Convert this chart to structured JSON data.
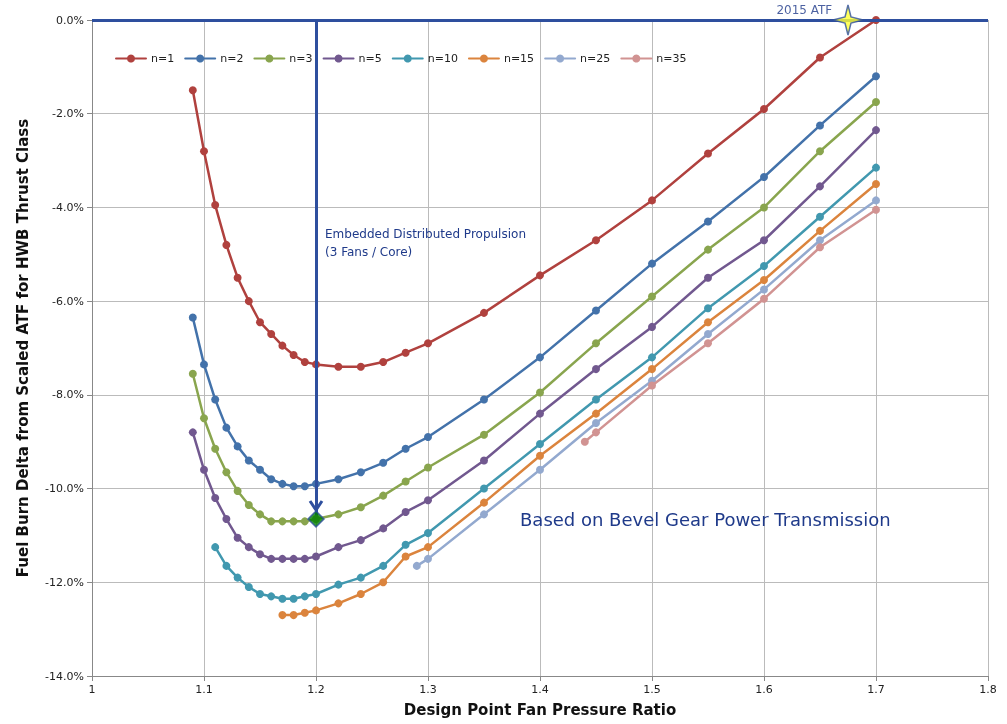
{
  "chart_data": {
    "type": "line",
    "xlabel": "Design Point Fan Pressure Ratio",
    "ylabel": "Fuel Burn Delta from Scaled ATF for HWB Thrust Class",
    "x": [
      1.09,
      1.1,
      1.11,
      1.12,
      1.13,
      1.14,
      1.15,
      1.16,
      1.17,
      1.18,
      1.19,
      1.2,
      1.22,
      1.24,
      1.26,
      1.28,
      1.3,
      1.35,
      1.4,
      1.45,
      1.5,
      1.55,
      1.6,
      1.65,
      1.7
    ],
    "series": [
      {
        "name": "n=1",
        "color": "#b0413e",
        "values": [
          -1.5,
          -2.8,
          -3.95,
          -4.8,
          -5.5,
          -6.0,
          -6.45,
          -6.7,
          -6.95,
          -7.15,
          -7.3,
          -7.35,
          -7.4,
          -7.4,
          -7.3,
          -7.1,
          -6.9,
          -6.25,
          -5.45,
          -4.7,
          -3.85,
          -2.85,
          -1.9,
          -0.8,
          0.0
        ]
      },
      {
        "name": "n=2",
        "color": "#4372aa",
        "values": [
          -6.35,
          -7.35,
          -8.1,
          -8.7,
          -9.1,
          -9.4,
          -9.6,
          -9.8,
          -9.9,
          -9.95,
          -9.95,
          -9.9,
          -9.8,
          -9.65,
          -9.45,
          -9.15,
          -8.9,
          -8.1,
          -7.2,
          -6.2,
          -5.2,
          -4.3,
          -3.35,
          -2.25,
          -1.2
        ]
      },
      {
        "name": "n=3",
        "color": "#89a54e",
        "values": [
          -7.55,
          -8.5,
          -9.15,
          -9.65,
          -10.05,
          -10.35,
          -10.55,
          -10.7,
          -10.7,
          -10.7,
          -10.7,
          -10.65,
          -10.55,
          -10.4,
          -10.15,
          -9.85,
          -9.55,
          -8.85,
          -7.95,
          -6.9,
          -5.9,
          -4.9,
          -4.0,
          -2.8,
          -1.75
        ]
      },
      {
        "name": "n=5",
        "color": "#71588f",
        "values": [
          -8.8,
          -9.6,
          -10.2,
          -10.65,
          -11.05,
          -11.25,
          -11.4,
          -11.5,
          -11.5,
          -11.5,
          -11.5,
          -11.45,
          -11.25,
          -11.1,
          -10.85,
          -10.5,
          -10.25,
          -9.4,
          -8.4,
          -7.45,
          -6.55,
          -5.5,
          -4.7,
          -3.55,
          -2.35
        ]
      },
      {
        "name": "n=10",
        "color": "#4198af",
        "values": [
          null,
          null,
          -11.25,
          -11.65,
          -11.9,
          -12.1,
          -12.25,
          -12.3,
          -12.35,
          -12.35,
          -12.3,
          -12.25,
          -12.05,
          -11.9,
          -11.65,
          -11.2,
          -10.95,
          -10.0,
          -9.05,
          -8.1,
          -7.2,
          -6.15,
          -5.25,
          -4.2,
          -3.15
        ]
      },
      {
        "name": "n=15",
        "color": "#db843d",
        "values": [
          null,
          null,
          null,
          null,
          null,
          null,
          null,
          null,
          -12.7,
          -12.7,
          -12.65,
          -12.6,
          -12.45,
          -12.25,
          -12.0,
          -11.45,
          -11.25,
          -10.3,
          -9.3,
          -8.4,
          -7.45,
          -6.45,
          -5.55,
          -4.5,
          -3.5
        ]
      },
      {
        "name": "n=25",
        "color": "#93a9cf",
        "x": [
          1.29,
          1.3,
          1.35,
          1.4,
          1.45,
          1.5,
          1.55,
          1.6,
          1.65,
          1.7
        ],
        "values": [
          -11.65,
          -11.5,
          -10.55,
          -9.6,
          -8.6,
          -7.7,
          -6.7,
          -5.75,
          -4.7,
          -3.85
        ]
      },
      {
        "name": "n=35",
        "color": "#d19392",
        "x": [
          1.44,
          1.45,
          1.5,
          1.55,
          1.6,
          1.65,
          1.7
        ],
        "values": [
          -9.0,
          -8.8,
          -7.8,
          -6.9,
          -5.95,
          -4.85,
          -4.05
        ]
      },
      {
        "type": "scatter",
        "marker": "diamond",
        "color": "#008000",
        "x": [
          1.2
        ],
        "values": [
          -10.65
        ]
      },
      {
        "type": "scatter",
        "name": "2015 ATF",
        "marker": "star",
        "color": "#ffff33",
        "x": [
          1.675
        ],
        "values": [
          0
        ]
      }
    ],
    "annotations": [
      "Embedded Distributed Propulsion\n(3 Fans / Core)",
      "Based on Bevel Gear Power Transmission"
    ],
    "ref_lines": [
      {
        "axis": "y",
        "value": 0,
        "color": "#2e4f9e"
      },
      {
        "axis": "x",
        "value": 1.2,
        "color": "#2e4f9e"
      }
    ],
    "xlim": [
      1,
      1.8
    ],
    "xticks": [
      1,
      1.1,
      1.2,
      1.3,
      1.4,
      1.5,
      1.6,
      1.7,
      1.8
    ],
    "ylim": [
      -14,
      0
    ],
    "yticks": [
      {
        "value": -14,
        "label": "-14.0%"
      },
      {
        "value": -12,
        "label": "-12.0%"
      },
      {
        "value": -10,
        "label": "-10.0%"
      },
      {
        "value": -8,
        "label": "-8.0%"
      },
      {
        "value": -6,
        "label": "-6.0%"
      },
      {
        "value": -4,
        "label": "-4.0%"
      },
      {
        "value": -2,
        "label": "-2.0%"
      },
      {
        "value": 0,
        "label": "0.0%"
      }
    ],
    "grid": true,
    "legend": "top",
    "marker": "circle",
    "line_style": "solid"
  }
}
